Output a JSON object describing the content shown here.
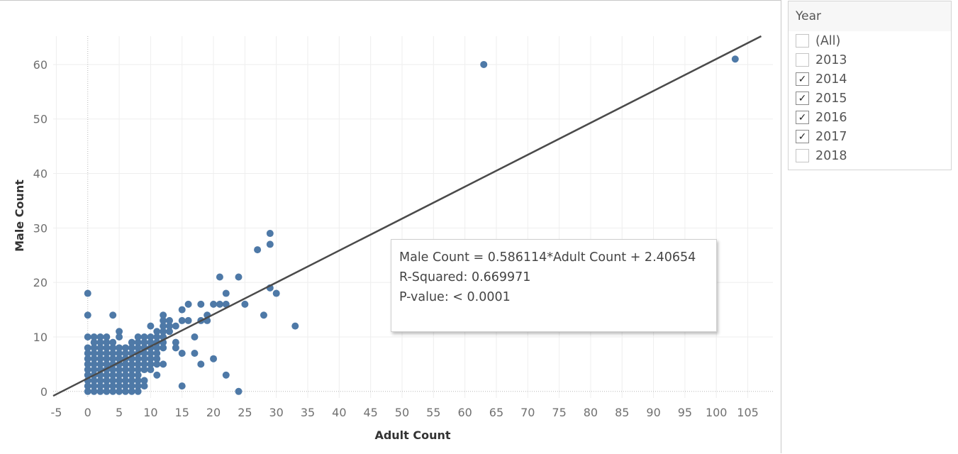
{
  "chart_data": {
    "type": "scatter",
    "xlabel": "Adult Count",
    "ylabel": "Male Count",
    "xlim": [
      -5.5,
      109
    ],
    "ylim": [
      -1.2,
      65.2
    ],
    "xticks": [
      "-5",
      "0",
      "5",
      "10",
      "15",
      "20",
      "25",
      "30",
      "35",
      "40",
      "45",
      "50",
      "55",
      "60",
      "65",
      "70",
      "75",
      "80",
      "85",
      "90",
      "95",
      "100",
      "105"
    ],
    "yticks": [
      "0",
      "10",
      "20",
      "30",
      "40",
      "50",
      "60"
    ],
    "grid": true,
    "marker_color": "#4e79a7",
    "trendline_color": "#4a4a4a",
    "trendline": {
      "slope": 0.586114,
      "intercept": 2.40654
    },
    "points": [
      [
        0,
        0
      ],
      [
        1,
        0
      ],
      [
        2,
        0
      ],
      [
        3,
        0
      ],
      [
        4,
        0
      ],
      [
        5,
        0
      ],
      [
        6,
        0
      ],
      [
        7,
        0
      ],
      [
        8,
        0
      ],
      [
        0,
        1
      ],
      [
        1,
        1
      ],
      [
        2,
        1
      ],
      [
        3,
        1
      ],
      [
        4,
        1
      ],
      [
        5,
        1
      ],
      [
        6,
        1
      ],
      [
        7,
        1
      ],
      [
        8,
        1
      ],
      [
        9,
        1
      ],
      [
        0,
        2
      ],
      [
        1,
        2
      ],
      [
        2,
        2
      ],
      [
        3,
        2
      ],
      [
        4,
        2
      ],
      [
        5,
        2
      ],
      [
        6,
        2
      ],
      [
        7,
        2
      ],
      [
        8,
        2
      ],
      [
        9,
        2
      ],
      [
        0,
        3
      ],
      [
        1,
        3
      ],
      [
        2,
        3
      ],
      [
        3,
        3
      ],
      [
        4,
        3
      ],
      [
        5,
        3
      ],
      [
        6,
        3
      ],
      [
        7,
        3
      ],
      [
        8,
        3
      ],
      [
        0,
        4
      ],
      [
        1,
        4
      ],
      [
        2,
        4
      ],
      [
        3,
        4
      ],
      [
        4,
        4
      ],
      [
        5,
        4
      ],
      [
        6,
        4
      ],
      [
        7,
        4
      ],
      [
        8,
        4
      ],
      [
        9,
        4
      ],
      [
        10,
        4
      ],
      [
        0,
        5
      ],
      [
        1,
        5
      ],
      [
        2,
        5
      ],
      [
        3,
        5
      ],
      [
        4,
        5
      ],
      [
        5,
        5
      ],
      [
        6,
        5
      ],
      [
        7,
        5
      ],
      [
        8,
        5
      ],
      [
        9,
        5
      ],
      [
        10,
        5
      ],
      [
        11,
        5
      ],
      [
        12,
        5
      ],
      [
        0,
        6
      ],
      [
        1,
        6
      ],
      [
        2,
        6
      ],
      [
        3,
        6
      ],
      [
        4,
        6
      ],
      [
        5,
        6
      ],
      [
        6,
        6
      ],
      [
        7,
        6
      ],
      [
        8,
        6
      ],
      [
        9,
        6
      ],
      [
        10,
        6
      ],
      [
        11,
        6
      ],
      [
        0,
        7
      ],
      [
        1,
        7
      ],
      [
        2,
        7
      ],
      [
        3,
        7
      ],
      [
        4,
        7
      ],
      [
        5,
        7
      ],
      [
        6,
        7
      ],
      [
        7,
        7
      ],
      [
        8,
        7
      ],
      [
        9,
        7
      ],
      [
        10,
        7
      ],
      [
        11,
        7
      ],
      [
        0,
        8
      ],
      [
        1,
        8
      ],
      [
        2,
        8
      ],
      [
        3,
        8
      ],
      [
        4,
        8
      ],
      [
        5,
        8
      ],
      [
        6,
        8
      ],
      [
        7,
        8
      ],
      [
        8,
        8
      ],
      [
        9,
        8
      ],
      [
        10,
        8
      ],
      [
        11,
        8
      ],
      [
        12,
        8
      ],
      [
        14,
        8
      ],
      [
        1,
        9
      ],
      [
        2,
        9
      ],
      [
        3,
        9
      ],
      [
        4,
        9
      ],
      [
        7,
        9
      ],
      [
        8,
        9
      ],
      [
        9,
        9
      ],
      [
        10,
        9
      ],
      [
        11,
        9
      ],
      [
        12,
        9
      ],
      [
        14,
        9
      ],
      [
        0,
        10
      ],
      [
        1,
        10
      ],
      [
        2,
        10
      ],
      [
        3,
        10
      ],
      [
        5,
        10
      ],
      [
        8,
        10
      ],
      [
        9,
        10
      ],
      [
        10,
        10
      ],
      [
        11,
        10
      ],
      [
        12,
        10
      ],
      [
        17,
        10
      ],
      [
        5,
        11
      ],
      [
        11,
        11
      ],
      [
        12,
        11
      ],
      [
        13,
        11
      ],
      [
        10,
        12
      ],
      [
        12,
        12
      ],
      [
        13,
        12
      ],
      [
        14,
        12
      ],
      [
        33,
        12
      ],
      [
        12,
        13
      ],
      [
        13,
        13
      ],
      [
        15,
        13
      ],
      [
        16,
        13
      ],
      [
        18,
        13
      ],
      [
        19,
        13
      ],
      [
        0,
        14
      ],
      [
        4,
        14
      ],
      [
        12,
        14
      ],
      [
        19,
        14
      ],
      [
        28,
        14
      ],
      [
        15,
        15
      ],
      [
        16,
        16
      ],
      [
        18,
        16
      ],
      [
        20,
        16
      ],
      [
        21,
        16
      ],
      [
        22,
        16
      ],
      [
        25,
        16
      ],
      [
        0,
        18
      ],
      [
        22,
        18
      ],
      [
        30,
        18
      ],
      [
        29,
        19
      ],
      [
        21,
        21
      ],
      [
        24,
        21
      ],
      [
        27,
        26
      ],
      [
        29,
        27
      ],
      [
        29,
        29
      ],
      [
        11,
        3
      ],
      [
        15,
        1
      ],
      [
        15,
        7
      ],
      [
        17,
        7
      ],
      [
        18,
        5
      ],
      [
        20,
        6
      ],
      [
        22,
        3
      ],
      [
        24,
        0
      ],
      [
        63,
        60
      ],
      [
        103,
        61
      ]
    ]
  },
  "tooltip": {
    "equation": "Male Count = 0.586114*Adult Count + 2.40654",
    "r_squared": "R-Squared: 0.669971",
    "p_value": "P-value: < 0.0001"
  },
  "filter": {
    "title": "Year",
    "items": [
      {
        "label": "(All)",
        "checked": false
      },
      {
        "label": "2013",
        "checked": false
      },
      {
        "label": "2014",
        "checked": true
      },
      {
        "label": "2015",
        "checked": true
      },
      {
        "label": "2016",
        "checked": true
      },
      {
        "label": "2017",
        "checked": true
      },
      {
        "label": "2018",
        "checked": false
      }
    ]
  }
}
